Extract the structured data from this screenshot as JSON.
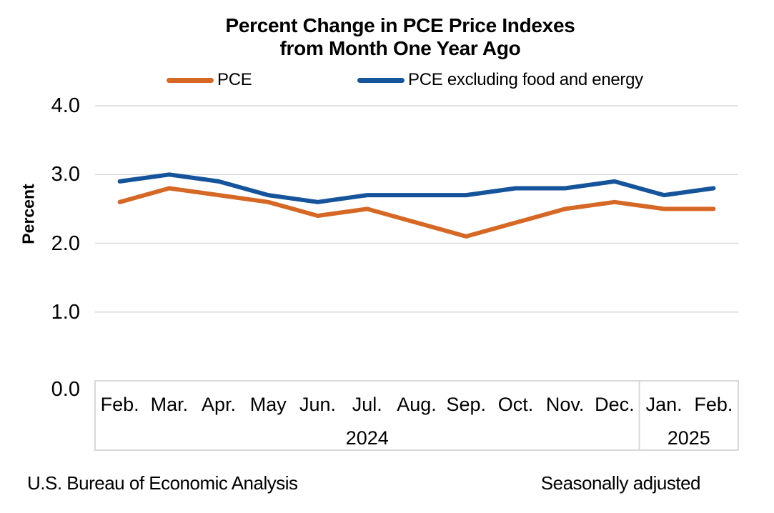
{
  "title": {
    "line1": "Percent Change in PCE Price Indexes",
    "line2": "from Month One Year Ago"
  },
  "footer": {
    "source": "U.S. Bureau of Economic Analysis",
    "note": "Seasonally adjusted"
  },
  "colors": {
    "grid": "#D9D9D9",
    "axis_box": "#D9D9D9",
    "text": "#000000"
  },
  "chart_data": {
    "type": "line",
    "title": "Percent Change in PCE Price Indexes from Month One Year Ago",
    "xlabel": "",
    "ylabel": "Percent",
    "ylim": [
      0.0,
      4.0
    ],
    "yticks": [
      0.0,
      1.0,
      2.0,
      3.0,
      4.0
    ],
    "ytick_labels": [
      "0.0",
      "1.0",
      "2.0",
      "3.0",
      "4.0"
    ],
    "grid": "horizontal",
    "legend_position": "top",
    "categories": [
      "Feb.",
      "Mar.",
      "Apr.",
      "May",
      "Jun.",
      "Jul.",
      "Aug.",
      "Sep.",
      "Oct.",
      "Nov.",
      "Dec.",
      "Jan.",
      "Feb."
    ],
    "year_groups": [
      {
        "label": "2024",
        "span": [
          0,
          10
        ]
      },
      {
        "label": "2025",
        "span": [
          11,
          12
        ]
      }
    ],
    "series": [
      {
        "name": "PCE",
        "color": "#D66826",
        "values": [
          2.6,
          2.8,
          2.7,
          2.6,
          2.4,
          2.5,
          2.3,
          2.1,
          2.3,
          2.5,
          2.6,
          2.5,
          2.5
        ]
      },
      {
        "name": "PCE excluding food and energy",
        "color": "#15549A",
        "values": [
          2.9,
          3.0,
          2.9,
          2.7,
          2.6,
          2.7,
          2.7,
          2.7,
          2.8,
          2.8,
          2.9,
          2.7,
          2.8
        ]
      }
    ],
    "annotations": [
      "Seasonally adjusted"
    ],
    "source": "U.S. Bureau of Economic Analysis"
  }
}
